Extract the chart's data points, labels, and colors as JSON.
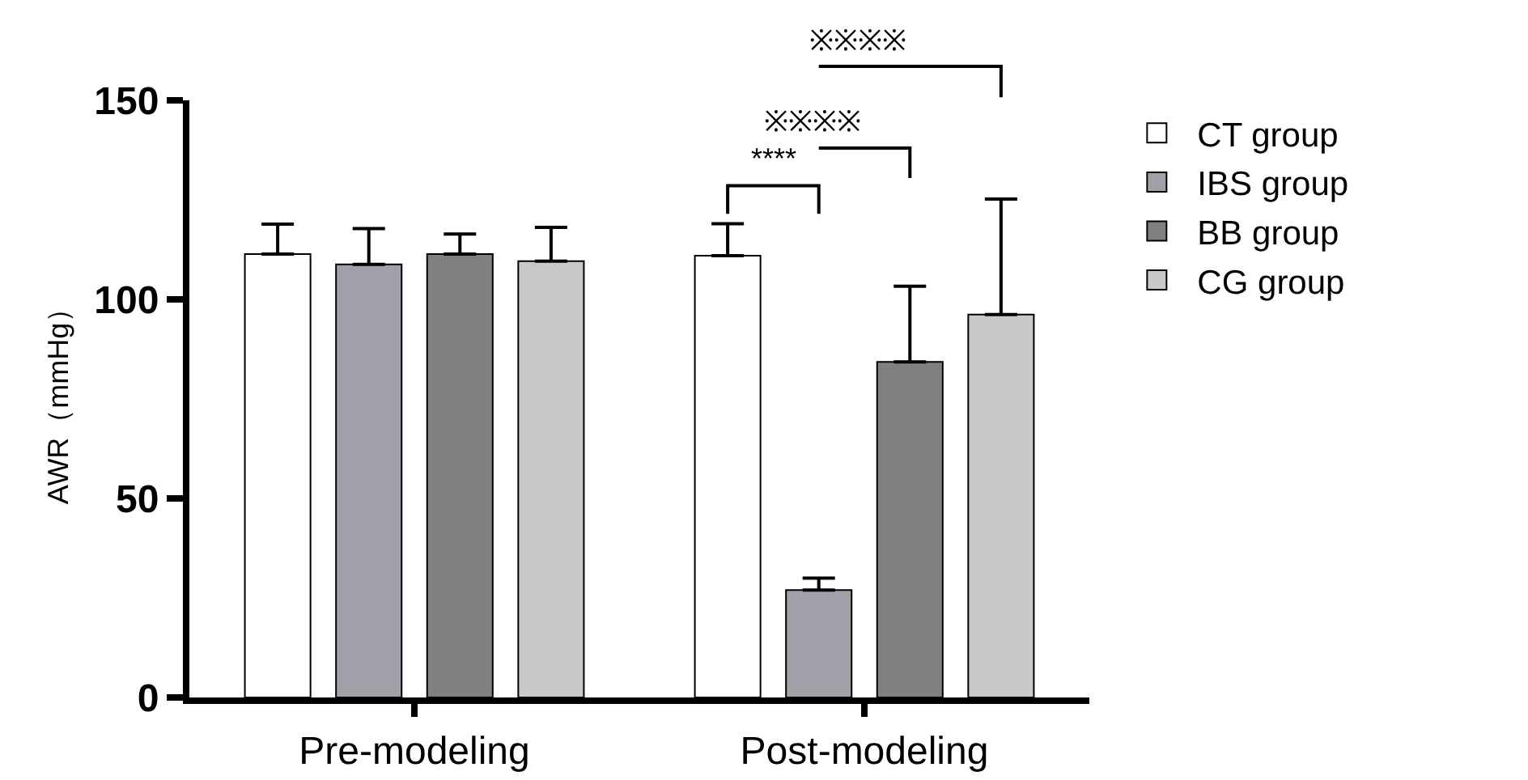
{
  "chart_data": {
    "type": "bar",
    "ylabel": "AWR（mmHg）",
    "categories": [
      "Pre-modeling",
      "Post-modeling"
    ],
    "series": [
      {
        "name": "CT group",
        "color": "#ffffff",
        "values": [
          111.4,
          111
        ],
        "errors": [
          7.5,
          8
        ]
      },
      {
        "name": "IBS group",
        "color": "#a0a0a8",
        "values": [
          108.8,
          27
        ],
        "errors": [
          9,
          3
        ]
      },
      {
        "name": "BB group",
        "color": "#808080",
        "values": [
          111.4,
          84.3
        ],
        "errors": [
          5,
          19
        ]
      },
      {
        "name": "CG group",
        "color": "#c8c8c8",
        "values": [
          109.6,
          96.2
        ],
        "errors": [
          8.5,
          29
        ]
      }
    ],
    "ylim": [
      0,
      150
    ],
    "yticks": [
      0,
      50,
      100,
      150
    ],
    "grid": false,
    "legend": "top right",
    "annotations": [
      "****",
      "※※※※",
      "※※※※"
    ]
  }
}
